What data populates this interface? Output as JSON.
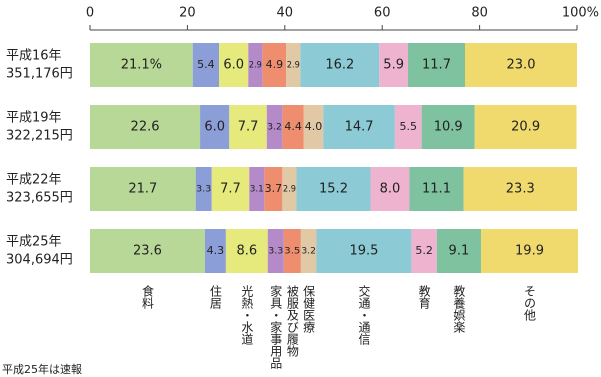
{
  "chart_data": {
    "type": "stacked-bar-horizontal",
    "categories": [
      "平成16年",
      "平成19年",
      "平成22年",
      "平成25年"
    ],
    "totals": [
      "351,176円",
      "322,215円",
      "323,655円",
      "304,694円"
    ],
    "xlim": [
      0,
      100
    ],
    "xticks": [
      0,
      20,
      40,
      60,
      80,
      {
        "value": 100,
        "label": "100%"
      }
    ],
    "note": "平成25年は速報",
    "series": [
      {
        "name": "食料",
        "color": "#b8d897",
        "values": [
          21.1,
          22.6,
          21.7,
          23.6
        ],
        "value_labels": [
          "21.1%",
          "22.6",
          "21.7",
          "23.6"
        ]
      },
      {
        "name": "住居",
        "color": "#8c9ed8",
        "values": [
          5.4,
          6.0,
          3.3,
          4.3
        ],
        "value_labels": [
          "5.4",
          "6.0",
          "3.3",
          "4.3"
        ]
      },
      {
        "name": "光熱・水道",
        "color": "#e6ea7c",
        "values": [
          6.0,
          7.7,
          7.7,
          8.6
        ],
        "value_labels": [
          "6.0",
          "7.7",
          "7.7",
          "8.6"
        ]
      },
      {
        "name": "家具・家事用品",
        "color": "#b48bc8",
        "values": [
          2.9,
          3.2,
          3.1,
          3.3
        ],
        "value_labels": [
          "2.9",
          "3.2",
          "3.1",
          "3.3"
        ]
      },
      {
        "name": "被服及び履物",
        "color": "#ee8e6f",
        "values": [
          4.9,
          4.4,
          3.7,
          3.5
        ],
        "value_labels": [
          "4.9",
          "4.4",
          "3.7",
          "3.5"
        ]
      },
      {
        "name": "保健医療",
        "color": "#e2c9a6",
        "values": [
          2.9,
          4.0,
          2.9,
          3.2
        ],
        "value_labels": [
          "2.9",
          "4.0",
          "2.9",
          "3.2"
        ]
      },
      {
        "name": "交通・通信",
        "color": "#8ccad6",
        "values": [
          16.2,
          14.7,
          15.2,
          19.5
        ],
        "value_labels": [
          "16.2",
          "14.7",
          "15.2",
          "19.5"
        ]
      },
      {
        "name": "教育",
        "color": "#eeb4cf",
        "values": [
          5.9,
          5.5,
          8.0,
          5.2
        ],
        "value_labels": [
          "5.9",
          "5.5",
          "8.0",
          "5.2"
        ]
      },
      {
        "name": "教養娯楽",
        "color": "#7fc29f",
        "values": [
          11.7,
          10.9,
          11.1,
          9.1
        ],
        "value_labels": [
          "11.7",
          "10.9",
          "11.1",
          "9.1"
        ]
      },
      {
        "name": "その他",
        "color": "#f0da6e",
        "values": [
          23.0,
          20.9,
          23.3,
          19.9
        ],
        "value_labels": [
          "23.0",
          "20.9",
          "23.3",
          "19.9"
        ]
      }
    ]
  }
}
